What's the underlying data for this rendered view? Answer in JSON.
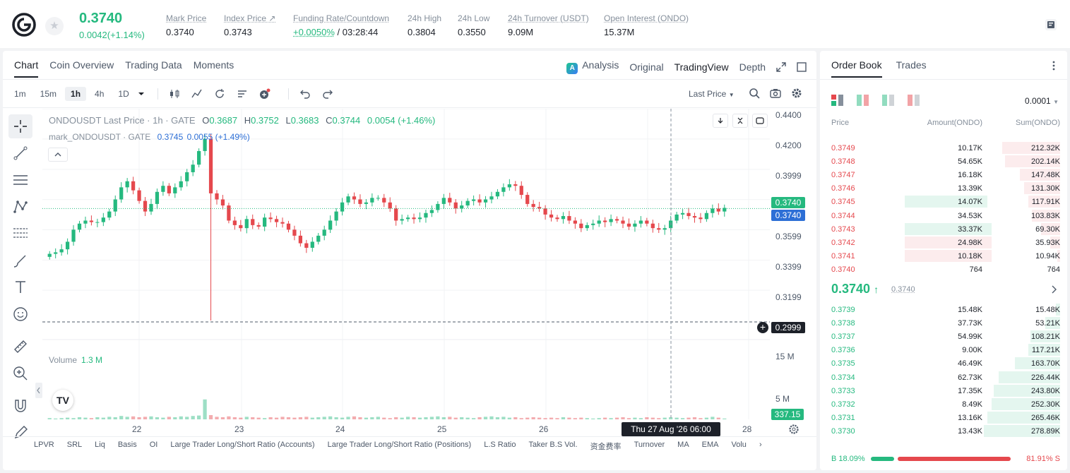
{
  "header": {
    "last_price": "0.3740",
    "change": "0.0042(+1.14%)",
    "stats": [
      {
        "label": "Mark Price",
        "value": "0.3740"
      },
      {
        "label": "Index Price ↗",
        "value": "0.3743"
      },
      {
        "label": "Funding Rate/Countdown",
        "value_green": "+0.0050%",
        "value": "/ 03:28:44"
      },
      {
        "label": "24h High",
        "value": "0.3804"
      },
      {
        "label": "24h Low",
        "value": "0.3550"
      },
      {
        "label": "24h Turnover (USDT)",
        "value": "9.09M"
      },
      {
        "label": "Open Interest (ONDO)",
        "value": "15.37M"
      }
    ]
  },
  "chart_tabs": [
    "Chart",
    "Coin Overview",
    "Trading Data",
    "Moments"
  ],
  "views": {
    "analysis": "Analysis",
    "original": "Original",
    "tradingview": "TradingView",
    "depth": "Depth"
  },
  "timeframes": [
    "1m",
    "15m",
    "1h",
    "4h",
    "1D"
  ],
  "price_source": "Last Price",
  "legend": {
    "symbol": "ONDOUSDT Last Price · 1h · GATE",
    "o": "O",
    "o_val": "0.3687",
    "h": "H",
    "h_val": "0.3752",
    "l": "L",
    "l_val": "0.3683",
    "c": "C",
    "c_val": "0.3744",
    "chg": "0.0054 (+1.46%)",
    "mark": "mark_ONDOUSDT · GATE",
    "mark_val": "0.3745",
    "mark_chg": "0.0055 (+1.49%)"
  },
  "volume": {
    "label": "Volume",
    "value": "1.3 M",
    "tag": "337.15 K"
  },
  "price_axis": [
    "0.4400",
    "0.4200",
    "0.3999",
    "0.3599",
    "0.3399",
    "0.3199"
  ],
  "volume_axis": [
    "15 M",
    "5 M"
  ],
  "price_tags": {
    "last": "0.3740",
    "mark": "0.3740",
    "cross": "0.2999"
  },
  "date_axis": [
    "22",
    "23",
    "24",
    "25",
    "26",
    "28"
  ],
  "crosshair_date": "Thu 27 Aug '26   06:00",
  "indicators": [
    "LPVR",
    "SRL",
    "Liq",
    "Basis",
    "OI",
    "Large Trader Long/Short Ratio (Accounts)",
    "Large Trader Long/Short Ratio (Positions)",
    "L.S Ratio",
    "Taker B.S Vol.",
    "资金费率",
    "Turnover",
    "MA",
    "EMA",
    "Volu"
  ],
  "chart_data": {
    "type": "candlestick",
    "x_labels": [
      "22",
      "23",
      "24",
      "25",
      "26",
      "28"
    ],
    "ylim": [
      0.2999,
      0.44
    ],
    "close_series": [
      0.344,
      0.345,
      0.347,
      0.352,
      0.36,
      0.364,
      0.366,
      0.365,
      0.365,
      0.368,
      0.372,
      0.38,
      0.388,
      0.392,
      0.386,
      0.379,
      0.372,
      0.377,
      0.385,
      0.389,
      0.384,
      0.388,
      0.392,
      0.398,
      0.403,
      0.412,
      0.42,
      0.384,
      0.38,
      0.376,
      0.366,
      0.363,
      0.361,
      0.367,
      0.363,
      0.362,
      0.368,
      0.367,
      0.365,
      0.364,
      0.36,
      0.356,
      0.351,
      0.348,
      0.352,
      0.356,
      0.36,
      0.366,
      0.372,
      0.378,
      0.382,
      0.38,
      0.377,
      0.378,
      0.381,
      0.381,
      0.378,
      0.374,
      0.366,
      0.367,
      0.368,
      0.367,
      0.368,
      0.371,
      0.373,
      0.377,
      0.381,
      0.378,
      0.374,
      0.376,
      0.379,
      0.38,
      0.378,
      0.38,
      0.382,
      0.385,
      0.388,
      0.39,
      0.389,
      0.383,
      0.377,
      0.375,
      0.374,
      0.37,
      0.368,
      0.367,
      0.369,
      0.366,
      0.364,
      0.361,
      0.363,
      0.364,
      0.366,
      0.365,
      0.367,
      0.366,
      0.364,
      0.362,
      0.364,
      0.366,
      0.364,
      0.361,
      0.36,
      0.361,
      0.366,
      0.37,
      0.371,
      0.369,
      0.368,
      0.367,
      0.371,
      0.374,
      0.372,
      0.3744
    ],
    "volume_series": [
      0.3,
      0.2,
      0.3,
      0.4,
      0.3,
      0.5,
      0.4,
      0.3,
      0.5,
      0.4,
      0.6,
      0.5,
      0.8,
      0.6,
      0.7,
      0.5,
      0.6,
      0.7,
      0.5,
      0.4,
      0.6,
      0.5,
      0.7,
      0.6,
      0.8,
      0.9,
      4.7,
      1.0,
      0.6,
      0.5,
      0.7,
      0.5,
      0.4,
      0.6,
      0.5,
      0.4,
      0.3,
      0.5,
      0.4,
      0.6,
      0.5,
      0.4,
      0.5,
      0.6,
      0.4,
      0.5,
      0.6,
      0.7,
      0.5,
      0.4,
      0.6,
      0.7,
      0.5,
      0.4,
      0.5,
      0.6,
      0.4,
      0.3,
      0.5,
      0.4,
      0.6,
      0.5,
      0.4,
      0.5,
      0.6,
      0.7,
      0.5,
      0.6,
      0.4,
      0.5,
      0.4,
      0.3,
      0.5,
      0.6,
      0.7,
      0.5,
      0.6,
      0.4,
      0.5,
      0.3,
      0.4,
      0.5,
      0.4,
      0.3,
      0.4,
      0.3,
      0.5,
      0.4,
      0.3,
      0.4,
      0.3,
      0.2,
      0.3,
      0.4,
      0.3,
      0.4,
      0.5,
      0.3,
      0.4,
      0.3,
      0.5,
      0.4,
      0.3,
      0.4,
      0.5,
      0.4,
      0.3,
      0.4,
      0.5,
      0.3,
      0.4,
      0.6,
      0.4,
      0.2
    ]
  },
  "orderbook": {
    "tabs": [
      "Order Book",
      "Trades"
    ],
    "precision": "0.0001",
    "headers": {
      "price": "Price",
      "amount": "Amount(ONDO)",
      "sum": "Sum(ONDO)"
    },
    "asks": [
      {
        "p": "0.3749",
        "a": "10.17K",
        "s": "212.32K",
        "depth": 0.76,
        "hl": 0
      },
      {
        "p": "0.3748",
        "a": "54.65K",
        "s": "202.14K",
        "depth": 0.72,
        "hl": 0
      },
      {
        "p": "0.3747",
        "a": "16.18K",
        "s": "147.48K",
        "depth": 0.53,
        "hl": 0
      },
      {
        "p": "0.3746",
        "a": "13.39K",
        "s": "131.30K",
        "depth": 0.47,
        "hl": 0
      },
      {
        "p": "0.3745",
        "a": "14.07K",
        "s": "117.91K",
        "depth": 0.42,
        "hl": 0.63
      },
      {
        "p": "0.3744",
        "a": "34.53K",
        "s": "103.83K",
        "depth": 0.37,
        "hl": 0
      },
      {
        "p": "0.3743",
        "a": "33.37K",
        "s": "69.30K",
        "depth": 0.25,
        "hl": 0.66
      },
      {
        "p": "0.3742",
        "a": "24.98K",
        "s": "35.93K",
        "depth": 0.13,
        "hl": 0.66
      },
      {
        "p": "0.3741",
        "a": "10.18K",
        "s": "10.94K",
        "depth": 0.04,
        "hl": 0.66
      },
      {
        "p": "0.3740",
        "a": "764",
        "s": "764",
        "depth": 0.0,
        "hl": 0
      }
    ],
    "mid_price": "0.3740",
    "mid_mark": "0.3740",
    "bids": [
      {
        "p": "0.3739",
        "a": "15.48K",
        "s": "15.48K",
        "depth": 0.06
      },
      {
        "p": "0.3738",
        "a": "37.73K",
        "s": "53.21K",
        "depth": 0.19
      },
      {
        "p": "0.3737",
        "a": "54.99K",
        "s": "108.21K",
        "depth": 0.39
      },
      {
        "p": "0.3736",
        "a": "9.00K",
        "s": "117.21K",
        "depth": 0.42
      },
      {
        "p": "0.3735",
        "a": "46.49K",
        "s": "163.70K",
        "depth": 0.59
      },
      {
        "p": "0.3734",
        "a": "62.73K",
        "s": "226.44K",
        "depth": 0.81
      },
      {
        "p": "0.3733",
        "a": "17.35K",
        "s": "243.80K",
        "depth": 0.87
      },
      {
        "p": "0.3732",
        "a": "8.49K",
        "s": "252.30K",
        "depth": 0.9
      },
      {
        "p": "0.3731",
        "a": "13.16K",
        "s": "265.46K",
        "depth": 0.95
      },
      {
        "p": "0.3730",
        "a": "13.43K",
        "s": "278.89K",
        "depth": 1.0
      }
    ],
    "buy_ratio": "B 18.09%",
    "sell_ratio": "81.91% S",
    "buy_fraction": 0.1809,
    "colors": {
      "green": "#25b97f",
      "red": "#e5484d"
    }
  }
}
